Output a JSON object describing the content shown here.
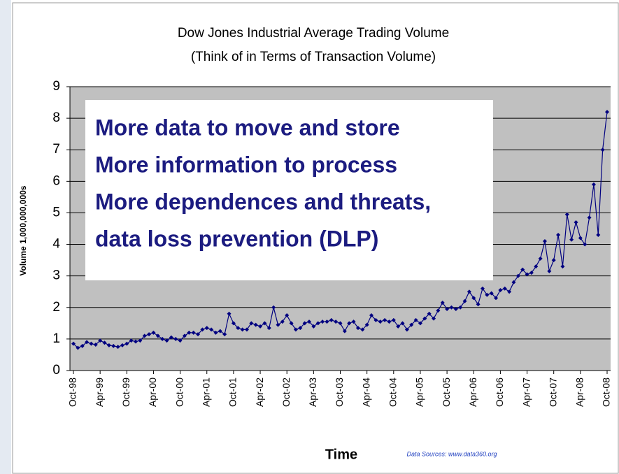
{
  "chart_data": {
    "type": "line",
    "title": "Dow Jones Industrial Average Trading Volume",
    "subtitle": "(Think of in Terms of Transaction Volume)",
    "y_label": "Volume 1,000,000,000s",
    "x_label": "Time",
    "source": "Data Sources: www.data360.org",
    "annotations": [
      "More data to move and store",
      "More information to process",
      "More dependences and threats,",
      "data loss prevention (DLP)"
    ],
    "categories": [
      "Oct-98",
      null,
      null,
      null,
      null,
      null,
      "Apr-99",
      null,
      null,
      null,
      null,
      null,
      "Oct-99",
      null,
      null,
      null,
      null,
      null,
      "Apr-00",
      null,
      null,
      null,
      null,
      null,
      "Oct-00",
      null,
      null,
      null,
      null,
      null,
      "Apr-01",
      null,
      null,
      null,
      null,
      null,
      "Oct-01",
      null,
      null,
      null,
      null,
      null,
      "Apr-02",
      null,
      null,
      null,
      null,
      null,
      "Oct-02",
      null,
      null,
      null,
      null,
      null,
      "Apr-03",
      null,
      null,
      null,
      null,
      null,
      "Oct-03",
      null,
      null,
      null,
      null,
      null,
      "Apr-04",
      null,
      null,
      null,
      null,
      null,
      "Oct-04",
      null,
      null,
      null,
      null,
      null,
      "Apr-05",
      null,
      null,
      null,
      null,
      null,
      "Oct-05",
      null,
      null,
      null,
      null,
      null,
      "Apr-06",
      null,
      null,
      null,
      null,
      null,
      "Oct-06",
      null,
      null,
      null,
      null,
      null,
      "Apr-07",
      null,
      null,
      null,
      null,
      null,
      "Oct-07",
      null,
      null,
      null,
      null,
      null,
      "Apr-08",
      null,
      null,
      null,
      null,
      null,
      "Oct-08"
    ],
    "series": [
      {
        "name": "Trading Volume",
        "color": "#000080",
        "values": [
          0.85,
          0.72,
          0.78,
          0.9,
          0.85,
          0.82,
          0.95,
          0.88,
          0.8,
          0.78,
          0.75,
          0.8,
          0.85,
          0.95,
          0.92,
          0.95,
          1.1,
          1.15,
          1.2,
          1.1,
          1.0,
          0.95,
          1.05,
          1.0,
          0.95,
          1.1,
          1.2,
          1.2,
          1.15,
          1.3,
          1.35,
          1.3,
          1.2,
          1.25,
          1.15,
          1.8,
          1.5,
          1.35,
          1.3,
          1.3,
          1.5,
          1.45,
          1.4,
          1.5,
          1.35,
          2.0,
          1.45,
          1.55,
          1.75,
          1.5,
          1.3,
          1.35,
          1.5,
          1.55,
          1.4,
          1.5,
          1.55,
          1.55,
          1.6,
          1.55,
          1.5,
          1.25,
          1.5,
          1.55,
          1.35,
          1.3,
          1.45,
          1.75,
          1.6,
          1.55,
          1.6,
          1.55,
          1.6,
          1.4,
          1.5,
          1.3,
          1.45,
          1.6,
          1.5,
          1.65,
          1.8,
          1.65,
          1.9,
          2.15,
          1.95,
          2.0,
          1.95,
          2.0,
          2.2,
          2.5,
          2.3,
          2.1,
          2.6,
          2.4,
          2.45,
          2.3,
          2.55,
          2.6,
          2.5,
          2.8,
          3.0,
          3.2,
          3.05,
          3.1,
          3.3,
          3.55,
          4.1,
          3.15,
          3.5,
          4.3,
          3.3,
          4.95,
          4.15,
          4.7,
          4.2,
          4.0,
          4.85,
          5.9,
          4.3,
          7.0,
          8.2
        ]
      }
    ],
    "ylim": [
      0,
      9
    ],
    "yticks": [
      0,
      1,
      2,
      3,
      4,
      5,
      6,
      7,
      8,
      9
    ],
    "grid": true,
    "plot_background": "#c0c0c0"
  }
}
